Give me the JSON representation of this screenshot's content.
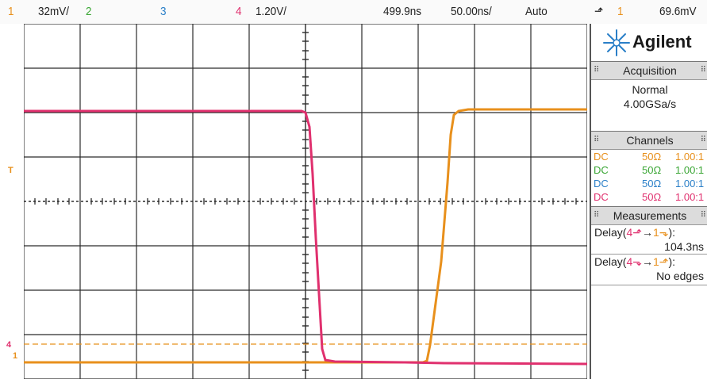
{
  "top_bar": {
    "ch1_label": "1",
    "ch1_scale": "32mV/",
    "ch2_label": "2",
    "ch3_label": "3",
    "ch4_label": "4",
    "ch4_scale": "1.20V/",
    "delay": "499.9ns",
    "timebase": "50.00ns/",
    "trigger_mode": "Auto",
    "trigger_edge": "⬏",
    "trigger_source": "1",
    "trigger_level": "69.6mV"
  },
  "screen": {
    "ch1_ground_marker": "1",
    "ch4_ground_marker": "4",
    "trigger_marker": "T"
  },
  "panel": {
    "brand": "Agilent",
    "acquisition": {
      "title": "Acquisition",
      "mode": "Normal",
      "sample_rate": "4.00GSa/s"
    },
    "channels": {
      "title": "Channels",
      "rows": [
        {
          "coupling": "DC",
          "impedance": "50Ω",
          "probe": "1.00:1",
          "color": "#e8901c"
        },
        {
          "coupling": "DC",
          "impedance": "50Ω",
          "probe": "1.00:1",
          "color": "#3aa634"
        },
        {
          "coupling": "DC",
          "impedance": "50Ω",
          "probe": "1.00:1",
          "color": "#2a7fc8"
        },
        {
          "coupling": "DC",
          "impedance": "50Ω",
          "probe": "1.00:1",
          "color": "#e0306e"
        }
      ]
    },
    "measurements": {
      "title": "Measurements",
      "items": [
        {
          "label_prefix": "Delay(",
          "from": "4⬏",
          "arrow": "→",
          "to": "1⬎",
          "suffix": "):",
          "value": "104.3ns"
        },
        {
          "label_prefix": "Delay(",
          "from": "4⬎",
          "arrow": "→",
          "to": "1⬏",
          "suffix": "):",
          "value": "No edges"
        }
      ]
    }
  },
  "colors": {
    "ch1": "#e8901c",
    "ch2": "#3aa634",
    "ch3": "#2a7fc8",
    "ch4": "#e0306e",
    "grid": "#2b2b2b"
  }
}
